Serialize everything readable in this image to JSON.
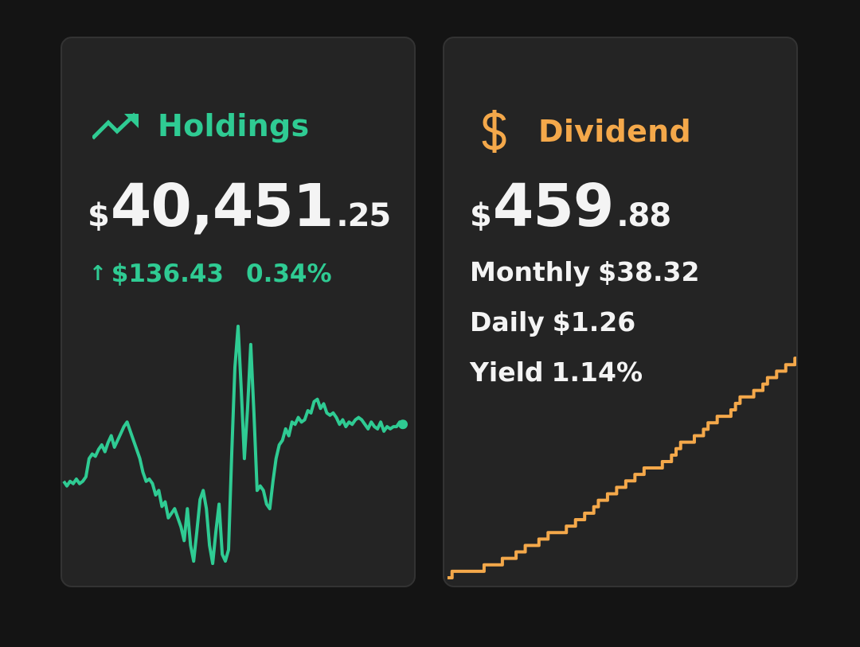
{
  "colors": {
    "background": "#141414",
    "card": "#242424",
    "holdings_accent": "#2fcb93",
    "dividend_accent": "#f4a84a",
    "text": "#f4f4f4"
  },
  "holdings": {
    "icon": "trending-up-icon",
    "title": "Holdings",
    "currency": "$",
    "amount_int": "40,451",
    "amount_dec": ".25",
    "change_arrow": "↑",
    "change_amount": "$136.43",
    "change_percent": "0.34%"
  },
  "dividend": {
    "icon": "dollar-icon",
    "icon_glyph": "$",
    "title": "Dividend",
    "currency": "$",
    "amount_int": "459",
    "amount_dec": ".88",
    "stats": [
      {
        "label": "Monthly",
        "value": "$38.32"
      },
      {
        "label": "Daily",
        "value": "$1.26"
      },
      {
        "label": "Yield",
        "value": "1.14%"
      }
    ]
  },
  "chart_data": [
    {
      "type": "line",
      "series": [
        {
          "values": [
            100,
            98,
            100,
            99,
            101,
            99,
            100,
            102,
            110,
            112,
            111,
            114,
            116,
            113,
            117,
            120,
            115,
            118,
            121,
            124,
            126,
            122,
            118,
            114,
            110,
            104,
            100,
            101,
            99,
            94,
            96,
            89,
            91,
            84,
            86,
            88,
            84,
            80,
            74,
            88,
            72,
            65,
            78,
            92,
            96,
            88,
            72,
            64,
            78,
            90,
            68,
            65,
            70,
            112,
            150,
            168,
            140,
            110,
            132,
            160,
            130,
            96,
            98,
            96,
            90,
            88,
            100,
            110,
            116,
            118,
            123,
            120,
            126,
            125,
            128,
            126,
            127,
            131,
            130,
            135,
            136,
            132,
            134,
            130,
            129,
            130,
            128,
            125,
            127,
            124,
            126,
            125,
            127,
            128,
            127,
            125,
            123,
            126,
            124,
            123,
            126,
            122,
            124,
            123,
            124,
            124,
            126,
            125
          ]
        }
      ]
    },
    {
      "type": "line",
      "series": [
        {
          "values": [
            1,
            2,
            2,
            2,
            2,
            2,
            2,
            2,
            3,
            3,
            3,
            3,
            4,
            4,
            4,
            5,
            5,
            6,
            6,
            6,
            7,
            7,
            8,
            8,
            8,
            8,
            9,
            9,
            10,
            10,
            11,
            11,
            12,
            13,
            13,
            14,
            14,
            15,
            15,
            16,
            16,
            17,
            17,
            18,
            18,
            18,
            18,
            19,
            19,
            20,
            21,
            22,
            22,
            22,
            23,
            23,
            24,
            25,
            25,
            26,
            26,
            26,
            27,
            28,
            29,
            29,
            29,
            30,
            30,
            31,
            32,
            32,
            33,
            33,
            34,
            34,
            35,
            36
          ]
        }
      ]
    }
  ]
}
